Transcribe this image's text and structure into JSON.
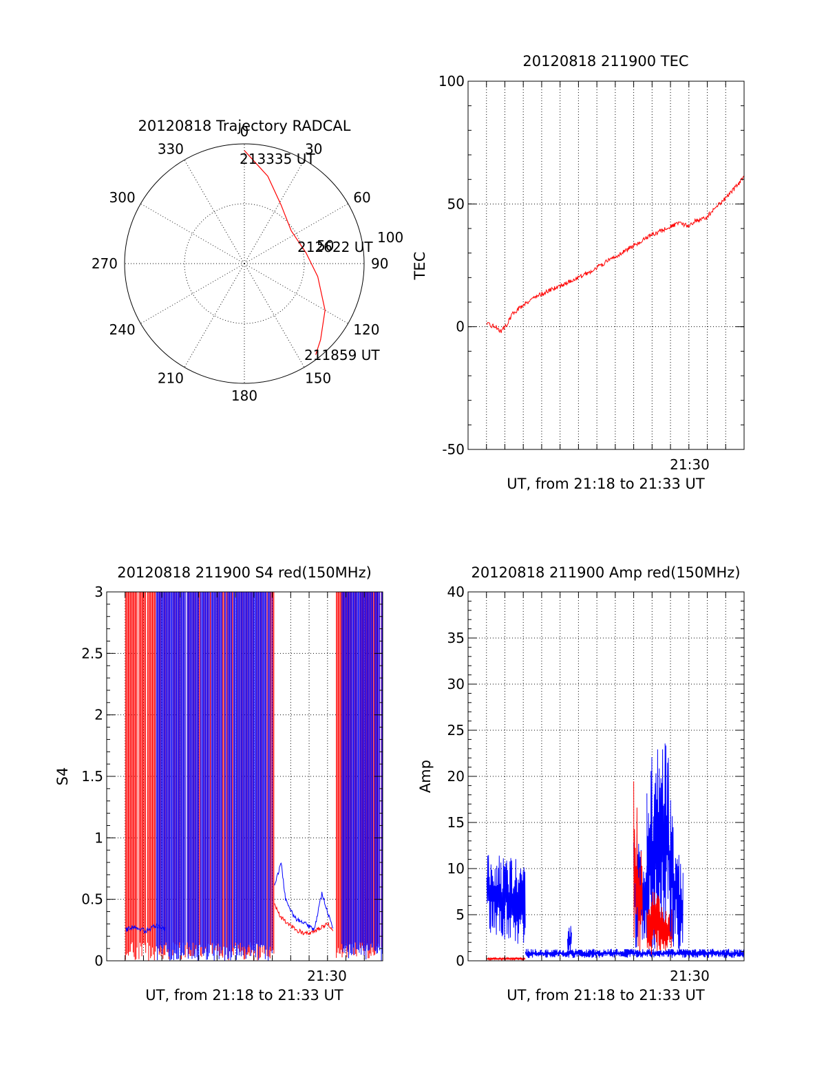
{
  "colors": {
    "red": "#ff0000",
    "blue": "#0000ff",
    "axis": "#000000"
  },
  "chart_data": [
    {
      "id": "polar",
      "type": "polar-trajectory",
      "title": "20120818 Trajectory RADCAL",
      "azimuth_labels": [
        "0",
        "30",
        "60",
        "90",
        "120",
        "150",
        "180",
        "210",
        "240",
        "270",
        "300",
        "330"
      ],
      "ring_labels": [
        "50",
        "100"
      ],
      "annotations": [
        "213335 UT",
        "212622 UT",
        "211859 UT"
      ],
      "trajectory": {
        "color": "#ff0000",
        "points": [
          {
            "az": 0,
            "zen": 85
          },
          {
            "az": 15,
            "zen": 68
          },
          {
            "az": 32,
            "zen": 52
          },
          {
            "az": 55,
            "zen": 43
          },
          {
            "az": 80,
            "zen": 47
          },
          {
            "az": 100,
            "zen": 56
          },
          {
            "az": 120,
            "zen": 70
          },
          {
            "az": 135,
            "zen": 81
          },
          {
            "az": 142,
            "zen": 87
          }
        ]
      }
    },
    {
      "id": "tec",
      "type": "line",
      "title": "20120818 211900 TEC",
      "ylabel": "TEC",
      "xlabel": "UT, from 21:18 to 21:33 UT",
      "x_tick_label": "21:30",
      "xlim": [
        21.3,
        21.55
      ],
      "ylim": [
        -50,
        100
      ],
      "yticks": [
        "-50",
        "0",
        "50",
        "100"
      ],
      "series": [
        {
          "color": "#ff0000",
          "x": [
            21.317,
            21.325,
            21.33,
            21.335,
            21.34,
            21.35,
            21.36,
            21.375,
            21.39,
            21.405,
            21.42,
            21.435,
            21.45,
            21.465,
            21.48,
            21.49,
            21.5,
            21.505,
            21.515,
            21.525,
            21.535,
            21.55
          ],
          "y": [
            1,
            0,
            -2,
            1,
            5,
            9,
            12,
            15,
            18,
            21,
            25,
            29,
            33,
            37,
            40,
            42,
            41,
            43,
            44,
            49,
            53,
            61
          ]
        }
      ]
    },
    {
      "id": "s4",
      "type": "line",
      "title": "20120818 211900 S4 red(150MHz)",
      "ylabel": "S4",
      "xlabel": "UT, from 21:18 to 21:33 UT",
      "x_tick_label": "21:30",
      "xlim": [
        21.3,
        21.55
      ],
      "ylim": [
        0,
        3
      ],
      "yticks": [
        "0",
        "0.5",
        "1",
        "1.5",
        "2",
        "2.5",
        "3"
      ],
      "saturated_intervals": [
        {
          "color": "#ff0000",
          "x": [
            21.317,
            21.452
          ]
        },
        {
          "color": "#0000ff",
          "x": [
            21.345,
            21.45
          ]
        },
        {
          "color": "#ff0000",
          "x": [
            21.508,
            21.55
          ]
        },
        {
          "color": "#0000ff",
          "x": [
            21.513,
            21.55
          ]
        }
      ],
      "series": [
        {
          "color": "#0000ff",
          "x": [
            21.317,
            21.325,
            21.335,
            21.345,
            21.353
          ],
          "y": [
            0.25,
            0.28,
            0.24,
            0.29,
            0.26
          ]
        },
        {
          "color": "#ff0000",
          "x": [
            21.452,
            21.458,
            21.465,
            21.472,
            21.48,
            21.488,
            21.495,
            21.5,
            21.505
          ],
          "y": [
            0.45,
            0.35,
            0.3,
            0.25,
            0.22,
            0.24,
            0.28,
            0.3,
            0.25
          ]
        },
        {
          "color": "#0000ff",
          "x": [
            21.452,
            21.458,
            21.462,
            21.47,
            21.48,
            21.488,
            21.495,
            21.5,
            21.505
          ],
          "y": [
            0.6,
            0.8,
            0.5,
            0.35,
            0.3,
            0.25,
            0.55,
            0.4,
            0.25
          ]
        }
      ]
    },
    {
      "id": "amp",
      "type": "line",
      "title": "20120818 211900 Amp red(150MHz)",
      "ylabel": "Amp",
      "xlabel": "UT, from 21:18 to 21:33 UT",
      "x_tick_label": "21:30",
      "xlim": [
        21.3,
        21.55
      ],
      "ylim": [
        0,
        40
      ],
      "yticks": [
        "0",
        "5",
        "10",
        "15",
        "20",
        "25",
        "30",
        "35",
        "40"
      ],
      "envelopes": [
        {
          "color": "#0000ff",
          "x": [
            21.317,
            21.352
          ],
          "ymin": [
            3,
            1.5
          ],
          "ymax": [
            11.5,
            11.5
          ]
        },
        {
          "color": "#0000ff",
          "x": [
            21.352,
            21.55
          ],
          "ymin": [
            0.3,
            0.3
          ],
          "ymax": [
            1.3,
            1.3
          ]
        },
        {
          "color": "#0000ff",
          "x": [
            21.39,
            21.394
          ],
          "ymin": [
            0.5,
            0.5
          ],
          "ymax": [
            3.8,
            3.8
          ]
        },
        {
          "color": "#ff0000",
          "x": [
            21.317,
            21.352
          ],
          "ymin": [
            0.1,
            0.1
          ],
          "ymax": [
            0.35,
            0.35
          ]
        },
        {
          "color": "#0000ff",
          "x": [
            21.45,
            21.462
          ],
          "ymin": [
            0.5,
            2.0
          ],
          "ymax": [
            14,
            13
          ]
        },
        {
          "color": "#ff0000",
          "x": [
            21.45,
            21.458
          ],
          "ymin": [
            0.5,
            1.0
          ],
          "ymax": [
            19.5,
            12
          ]
        },
        {
          "color": "#0000ff",
          "x": [
            21.462,
            21.482
          ],
          "ymin": [
            1.0,
            1.5
          ],
          "ymax": [
            22,
            24
          ]
        },
        {
          "color": "#ff0000",
          "x": [
            21.462,
            21.485
          ],
          "ymin": [
            0.5,
            0.8
          ],
          "ymax": [
            8,
            6
          ]
        },
        {
          "color": "#0000ff",
          "x": [
            21.482,
            21.495
          ],
          "ymin": [
            0.5,
            0.5
          ],
          "ymax": [
            19,
            10
          ]
        }
      ]
    }
  ]
}
